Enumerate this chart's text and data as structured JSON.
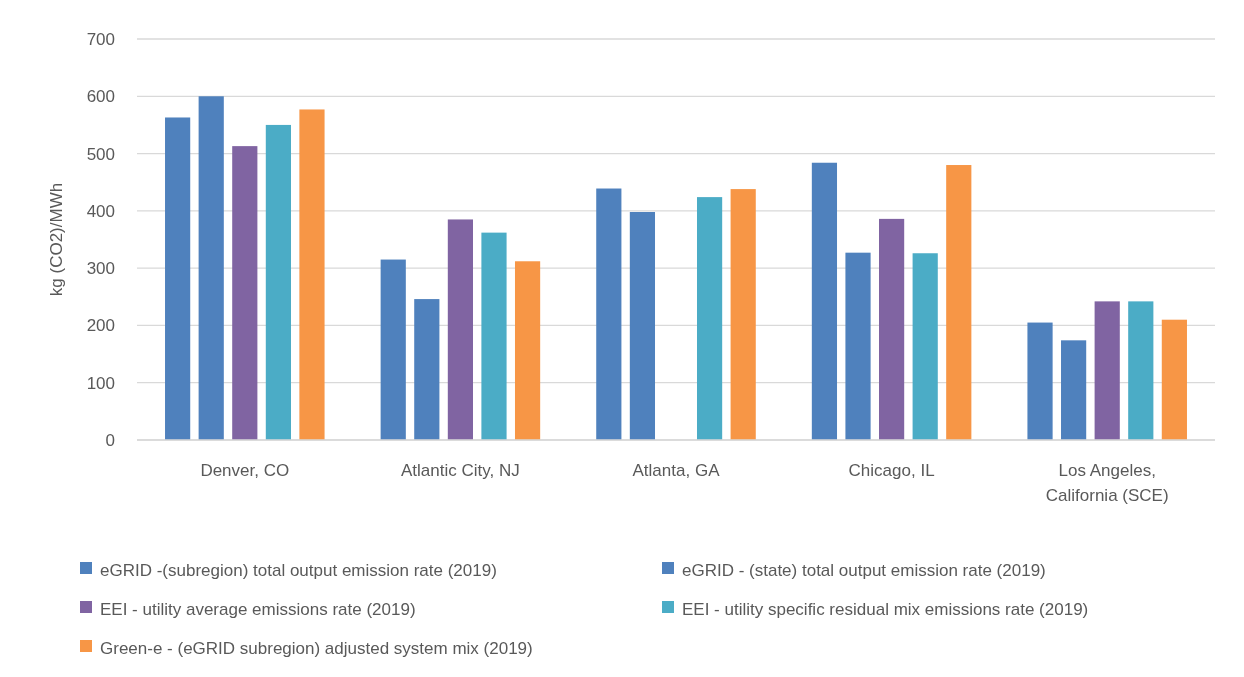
{
  "chart_data": {
    "type": "bar",
    "ylabel": "kg (CO2)/MWh",
    "categories": [
      "Denver, CO",
      "Atlantic City, NJ",
      "Atlanta, GA",
      "Chicago, IL",
      "Los Angeles, California (SCE)"
    ],
    "series": [
      {
        "name": "eGRID -(subregion) total output emission rate (2019)",
        "color": "#4f81bd",
        "values": [
          563,
          315,
          439,
          484,
          205
        ]
      },
      {
        "name": "eGRID - (state) total output emission rate (2019)",
        "color": "#4f81bd",
        "values": [
          600,
          246,
          398,
          327,
          174
        ]
      },
      {
        "name": "EEI - utility average emissions rate (2019)",
        "color": "#8064a2",
        "values": [
          513,
          385,
          null,
          386,
          242
        ]
      },
      {
        "name": "EEI - utility specific residual mix emissions rate (2019)",
        "color": "#4bacc6",
        "values": [
          550,
          362,
          424,
          326,
          242
        ]
      },
      {
        "name": "Green-e - (eGRID subregion) adjusted system mix (2019)",
        "color": "#f79646",
        "values": [
          577,
          312,
          438,
          480,
          210
        ]
      }
    ],
    "ylim": [
      0,
      700
    ],
    "yticks": [
      0,
      100,
      200,
      300,
      400,
      500,
      600,
      700
    ],
    "grid": "y",
    "legend": "bottom"
  }
}
